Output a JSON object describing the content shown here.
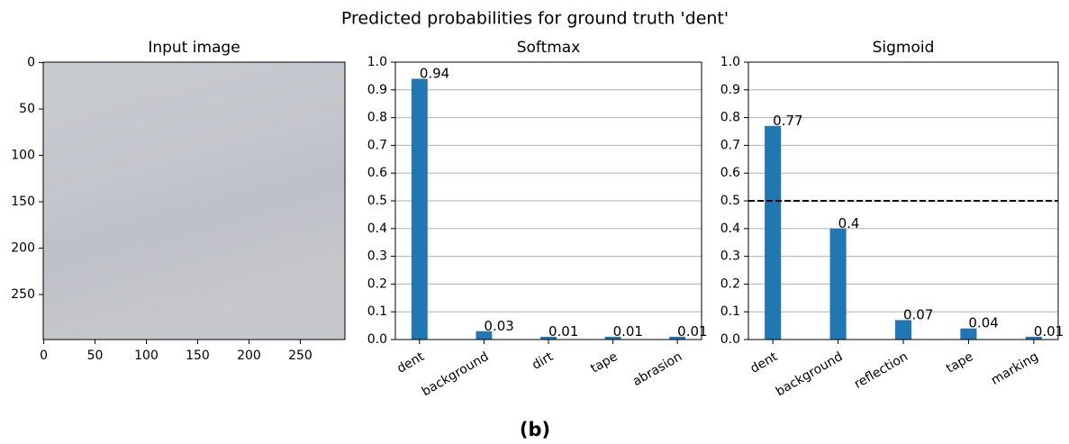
{
  "title": "Predicted probabilities for ground truth 'dent'",
  "caption": "(b)",
  "chart_data": [
    {
      "type": "image",
      "title": "Input image",
      "xlim": [
        -0.5,
        293.5
      ],
      "ylim": [
        298.5,
        -0.5
      ],
      "xticks": [
        0,
        50,
        100,
        150,
        200,
        250
      ],
      "yticks": [
        0,
        50,
        100,
        150,
        200,
        250
      ]
    },
    {
      "type": "bar",
      "title": "Softmax",
      "color": "#1f77b4",
      "grid": true,
      "categories": [
        "dent",
        "background",
        "dirt",
        "tape",
        "abrasion"
      ],
      "values": [
        0.94,
        0.03,
        0.01,
        0.01,
        0.01
      ],
      "ylim": [
        0,
        1
      ],
      "yticks": [
        {
          "value": 0,
          "label": "0.0"
        },
        0.1,
        0.2,
        0.3,
        0.4,
        0.5,
        0.6,
        0.7,
        0.8,
        0.9,
        {
          "value": 1,
          "label": "1.0"
        }
      ]
    },
    {
      "type": "bar",
      "title": "Sigmoid",
      "color": "#1f77b4",
      "grid": true,
      "categories": [
        "dent",
        "background",
        "reflection",
        "tape",
        "marking"
      ],
      "values": [
        0.77,
        0.4,
        0.07,
        0.04,
        0.01
      ],
      "threshold": 0.5,
      "ylim": [
        0,
        1
      ],
      "yticks": [
        {
          "value": 0,
          "label": "0.0"
        },
        0.1,
        0.2,
        0.3,
        0.4,
        0.5,
        0.6,
        0.7,
        0.8,
        0.9,
        {
          "value": 1,
          "label": "1.0"
        }
      ]
    }
  ]
}
